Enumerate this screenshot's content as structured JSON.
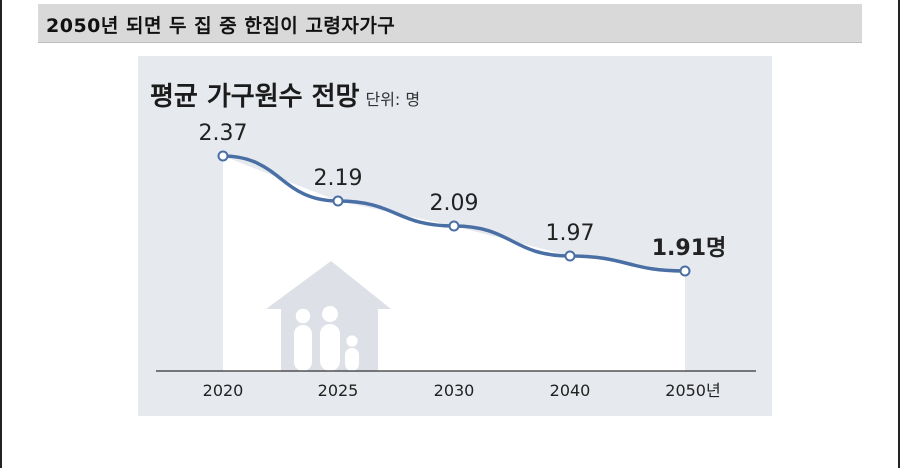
{
  "header": {
    "title": "2050년 되면 두 집 중 한집이 고령자가구"
  },
  "chart": {
    "title": "평균 가구원수 전망",
    "unit": "단위: 명"
  },
  "chart_data": {
    "type": "line",
    "title": "평균 가구원수 전망",
    "subtitle": "단위: 명",
    "categories": [
      "2020",
      "2025",
      "2030",
      "2040",
      "2050년"
    ],
    "values": [
      2.37,
      2.19,
      2.09,
      1.97,
      1.91
    ],
    "value_labels": [
      "2.37",
      "2.19",
      "2.09",
      "1.97",
      "1.91명"
    ],
    "xlabel": "",
    "ylabel": "",
    "ylim": [
      1.5,
      2.5
    ],
    "grid": false,
    "colors": {
      "line": "#4a6fa5",
      "panel": "#e6e9ee",
      "fill": "#ffffff",
      "house": "#dde1e7"
    }
  }
}
